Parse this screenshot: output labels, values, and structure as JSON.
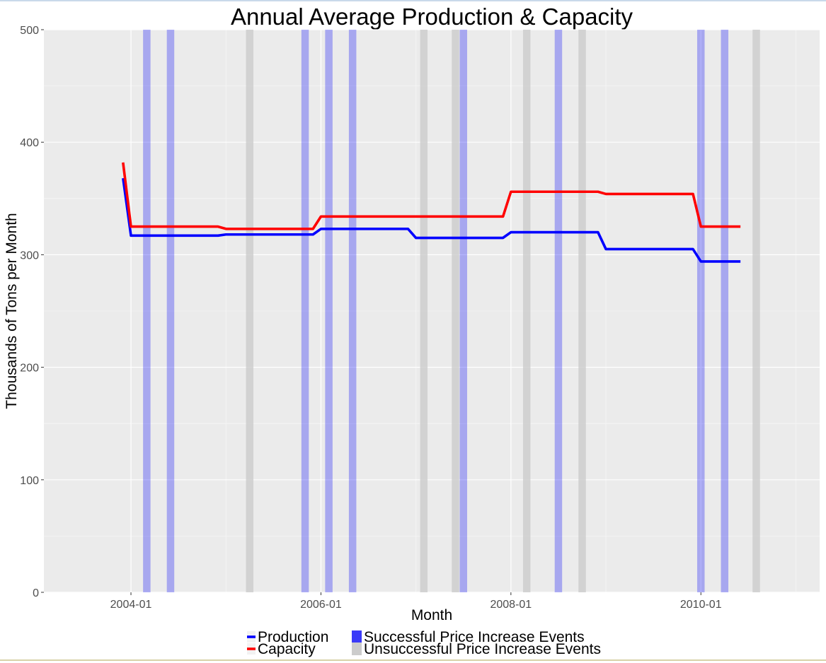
{
  "chart_data": {
    "type": "line",
    "title": "Annual Average Production & Capacity",
    "xlabel": "Month",
    "ylabel": "Thousands of Tons per Month",
    "ylim": [
      0,
      500
    ],
    "xlim": [
      "2003-02",
      "2011-04"
    ],
    "y_ticks": [
      0,
      100,
      200,
      300,
      400,
      500
    ],
    "x_ticks": [
      "2004-01",
      "2006-01",
      "2008-01",
      "2010-01"
    ],
    "grid": true,
    "legend_position": "bottom",
    "series": [
      {
        "name": "Production",
        "color": "#0000ff",
        "points": [
          [
            "2003-12",
            368
          ],
          [
            "2004-01",
            317
          ],
          [
            "2004-12",
            317
          ],
          [
            "2005-01",
            318
          ],
          [
            "2005-12",
            318
          ],
          [
            "2006-01",
            323
          ],
          [
            "2006-12",
            323
          ],
          [
            "2007-01",
            315
          ],
          [
            "2007-12",
            315
          ],
          [
            "2008-01",
            320
          ],
          [
            "2008-12",
            320
          ],
          [
            "2009-01",
            305
          ],
          [
            "2009-12",
            305
          ],
          [
            "2010-01",
            294
          ],
          [
            "2010-06",
            294
          ]
        ]
      },
      {
        "name": "Capacity",
        "color": "#ff0000",
        "points": [
          [
            "2003-12",
            382
          ],
          [
            "2004-01",
            325
          ],
          [
            "2004-12",
            325
          ],
          [
            "2005-01",
            323
          ],
          [
            "2005-12",
            323
          ],
          [
            "2006-01",
            334
          ],
          [
            "2006-12",
            334
          ],
          [
            "2007-01",
            334
          ],
          [
            "2007-12",
            334
          ],
          [
            "2008-01",
            356
          ],
          [
            "2008-12",
            356
          ],
          [
            "2009-01",
            354
          ],
          [
            "2009-12",
            354
          ],
          [
            "2010-01",
            325
          ],
          [
            "2010-06",
            325
          ]
        ]
      }
    ],
    "events": [
      {
        "name": "Successful Price Increase Events",
        "color": "#3a3af8",
        "months": [
          "2004-03",
          "2004-06",
          "2005-11",
          "2006-02",
          "2006-05",
          "2007-07",
          "2008-07",
          "2010-01",
          "2010-04"
        ]
      },
      {
        "name": "Unsuccessful Price Increase Events",
        "color": "#cccccc",
        "months": [
          "2005-04",
          "2007-02",
          "2007-06",
          "2008-03",
          "2008-10",
          "2010-08"
        ]
      }
    ]
  }
}
